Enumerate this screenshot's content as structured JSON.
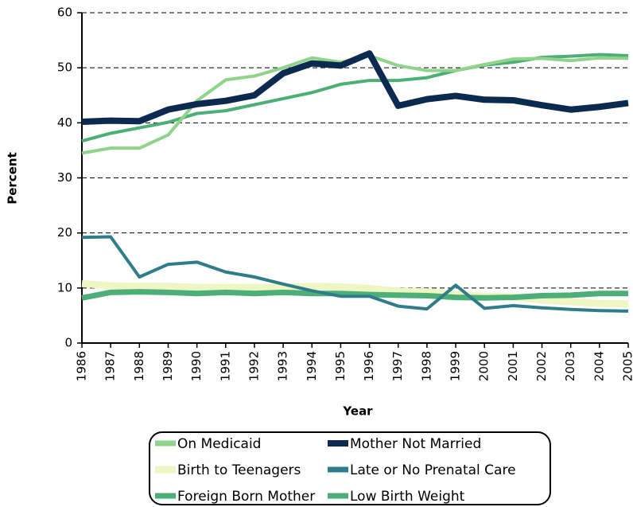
{
  "chart_data": {
    "type": "line",
    "x_label": "Year",
    "y_label": "Percent",
    "x": [
      1986,
      1987,
      1988,
      1989,
      1990,
      1991,
      1992,
      1993,
      1994,
      1995,
      1996,
      1997,
      1998,
      1999,
      2000,
      2001,
      2002,
      2003,
      2004,
      2005
    ],
    "xlim": [
      1986,
      2005
    ],
    "ylim": [
      0,
      60
    ],
    "yticks": [
      0,
      10,
      20,
      30,
      40,
      50,
      60
    ],
    "grid": true,
    "series": [
      {
        "name": "On Medicaid",
        "color": "#8fd48a",
        "width": 4,
        "values": [
          34.5,
          35.4,
          35.4,
          37.8,
          44,
          47.8,
          48.5,
          50,
          51.8,
          51,
          52.2,
          50.4,
          49.5,
          49.5,
          50.6,
          51.6,
          51.7,
          51.3,
          51.8,
          51.7
        ]
      },
      {
        "name": "Mother Not Married",
        "color": "#0c2a50",
        "width": 8,
        "values": [
          40.2,
          40.4,
          40.3,
          42.4,
          43.4,
          44,
          45,
          49,
          50.8,
          50.4,
          52.6,
          43.1,
          44.3,
          44.9,
          44.2,
          44.1,
          43.2,
          42.4,
          42.9,
          43.6
        ]
      },
      {
        "name": "Birth to Teenagers",
        "color": "#eef6c4",
        "width": 9,
        "values": [
          10.8,
          10.4,
          10.3,
          10.3,
          10.1,
          10.1,
          10.1,
          10.1,
          10.3,
          10.2,
          9.9,
          9.4,
          9.3,
          8.8,
          8.5,
          8.4,
          7.8,
          7.5,
          7.2,
          7.1
        ]
      },
      {
        "name": "Late or No Prenatal Care",
        "color": "#2f7c8a",
        "width": 4,
        "values": [
          19.2,
          19.3,
          12,
          14.3,
          14.7,
          12.9,
          12,
          10.7,
          9.5,
          8.5,
          8.5,
          6.7,
          6.2,
          10.5,
          6.3,
          6.8,
          6.4,
          6.1,
          5.9,
          5.8
        ]
      },
      {
        "name": "Foreign Born Mother",
        "color": "#4caf78",
        "width": 4,
        "values": [
          36.7,
          38.1,
          39.1,
          40.1,
          41.7,
          42.2,
          43.3,
          44.4,
          45.5,
          47,
          47.7,
          47.7,
          48.2,
          49.5,
          50.5,
          51,
          51.9,
          52.1,
          52.4,
          52.2
        ]
      },
      {
        "name": "Low Birth Weight",
        "color": "#4caf78",
        "width": 7,
        "values": [
          8.2,
          9.2,
          9.3,
          9.2,
          9.0,
          9.2,
          9.0,
          9.2,
          9.0,
          9.0,
          8.8,
          8.7,
          8.6,
          8.3,
          8.2,
          8.3,
          8.6,
          8.7,
          9.0,
          9.0
        ]
      }
    ]
  }
}
